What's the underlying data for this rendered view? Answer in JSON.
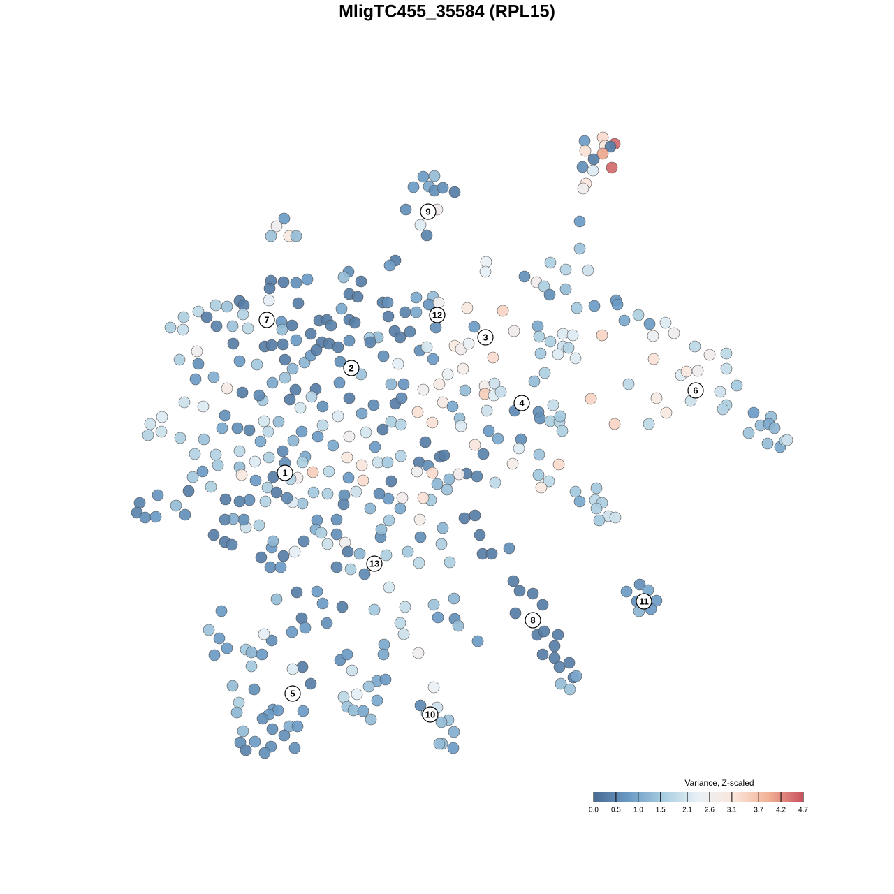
{
  "chart_data": {
    "type": "scatter",
    "title": "MligTC455_35584 (RPL15)",
    "colorbar_title": "Variance, Z-scaled",
    "xlim": [
      180,
      1150
    ],
    "ylim": [
      1100,
      180
    ],
    "colorscale": {
      "colors": [
        "#4a6b93",
        "#6a9ac4",
        "#a9cde0",
        "#e9f1f6",
        "#fbe6dc",
        "#f1b296",
        "#c8505e"
      ],
      "lim": [
        0,
        4.7
      ]
    },
    "colorbar_ticks": [
      {
        "value": 0,
        "label": "0.0"
      },
      0.5,
      {
        "value": 1,
        "label": "1.0"
      },
      1.5,
      2.1,
      2.6,
      3.1,
      3.7,
      4.2,
      4.7
    ],
    "cluster_labels": [
      {
        "label": "1",
        "x": 408,
        "y": 677
      },
      {
        "label": "2",
        "x": 503,
        "y": 527
      },
      {
        "label": "3",
        "x": 695,
        "y": 483
      },
      {
        "label": "4",
        "x": 747,
        "y": 577
      },
      {
        "label": "5",
        "x": 419,
        "y": 993
      },
      {
        "label": "6",
        "x": 996,
        "y": 559
      },
      {
        "label": "7",
        "x": 382,
        "y": 458
      },
      {
        "label": "8",
        "x": 763,
        "y": 888
      },
      {
        "label": "9",
        "x": 613,
        "y": 303
      },
      {
        "label": "10",
        "x": 616,
        "y": 1023
      },
      {
        "label": "11",
        "x": 922,
        "y": 861
      },
      {
        "label": "12",
        "x": 626,
        "y": 451
      },
      {
        "label": "13",
        "x": 536,
        "y": 807
      }
    ],
    "x": [
      837,
      863,
      880,
      866,
      874,
      838,
      850,
      863,
      834,
      849,
      876,
      839,
      835,
      830,
      830,
      606,
      622,
      614,
      592,
      622,
      634,
      651,
      581,
      626,
      602,
      611,
      407,
      396,
      388,
      414,
      424,
      566,
      558,
      499,
      492,
      517,
      500,
      512,
      440,
      424,
      406,
      388,
      386,
      385,
      343,
      349,
      325,
      309,
      284,
      263,
      244,
      262,
      296,
      310,
      333,
      355,
      348,
      427,
      403,
      418,
      404,
      457,
      468,
      474,
      500,
      508,
      489,
      548,
      555,
      596,
      620,
      614,
      580,
      596,
      556,
      624,
      565,
      573,
      541,
      529,
      334,
      379,
      389,
      405,
      424,
      445,
      461,
      471,
      484,
      500,
      530,
      549,
      570,
      587,
      601,
      611,
      620,
      628,
      669,
      679,
      696,
      695,
      720,
      736,
      751,
      768,
      779,
      788,
      810,
      810,
      787,
      826,
      851,
      842,
      882,
      884,
      894,
      914,
      930,
      953,
      965,
      935,
      862,
      806,
      820,
      770,
      772,
      788,
      806,
      814,
      799,
      824,
      774,
      780,
      765,
      651,
      660,
      671,
      706,
      663,
      641,
      629,
      666,
      694,
      694,
      707,
      708,
      717,
      697,
      737,
      771,
      792,
      773,
      788,
      801,
      802,
      805,
      658,
      660,
      606,
      634,
      648,
      598,
      619,
      566,
      575,
      578,
      560,
      900,
      940,
      954,
      929,
      880,
      846,
      936,
      975,
      983,
      999,
      1016,
      1040,
      1040,
      995,
      1031,
      1055,
      1040,
      1035,
      989,
      1079,
      1089,
      1104,
      1101,
      1109,
      1072,
      1099,
      1117,
      1124,
      1127,
      680,
      713,
      700,
      746,
      743,
      772,
      800,
      734,
      771,
      786,
      775,
      709,
      683,
      668,
      657,
      643,
      630,
      636,
      609,
      692,
      824,
      854,
      830,
      852,
      862,
      854,
      871,
      881,
      858,
      215,
      232,
      212,
      231,
      258,
      279,
      292,
      309,
      264,
      291,
      282,
      257,
      284,
      280,
      306,
      325,
      347,
      322,
      318,
      340,
      357,
      378,
      376,
      371,
      390,
      408,
      419,
      436,
      368,
      343,
      408,
      445,
      453,
      487,
      517,
      486,
      452,
      423,
      430,
      415,
      399,
      384,
      373,
      343,
      365,
      385,
      343,
      312,
      290,
      276,
      302,
      346,
      366,
      383,
      404,
      391,
      426,
      448,
      471,
      497,
      518,
      520,
      499,
      510,
      524,
      500,
      477,
      455,
      437,
      420,
      405,
      432,
      462,
      484,
      462,
      446,
      500,
      518,
      535,
      548,
      560,
      574,
      537,
      541,
      555,
      574,
      600,
      597,
      613,
      619,
      626,
      640,
      617,
      606,
      576,
      601,
      573,
      556,
      543,
      530,
      493,
      492,
      469,
      449,
      433,
      419,
      411,
      396,
      380,
      357,
      343,
      323,
      352,
      371,
      349,
      334,
      322,
      306,
      322,
      332,
      374,
      389,
      391,
      406,
      422,
      435,
      454,
      452,
      482,
      482,
      460,
      469,
      494,
      498,
      515,
      502,
      482,
      522,
      553,
      584,
      600,
      545,
      546,
      557,
      602,
      634,
      632,
      644,
      665,
      680,
      687,
      691,
      704,
      729,
      200,
      196,
      208,
      226,
      223,
      252,
      265,
      270,
      387,
      402,
      408,
      433,
      416,
      560,
      735,
      744,
      763,
      777,
      738,
      769,
      779,
      799,
      794,
      777,
      794,
      801,
      815,
      821,
      825,
      803,
      816,
      916,
      897,
      928,
      912,
      940,
      915,
      932,
      557,
      454,
      425,
      396,
      462,
      490,
      536,
      580,
      621,
      650,
      627,
      651,
      656,
      573,
      578,
      684,
      468,
      432,
      437,
      418,
      389,
      378,
      317,
      299,
      314,
      325,
      307,
      352,
      360,
      375,
      360,
      433,
      419,
      487,
      497,
      504,
      550,
      549,
      599,
      445,
      540,
      552,
      528,
      511,
      492,
      497,
      506,
      520,
      540,
      531,
      333,
      364,
      342,
      339,
      391,
      398,
      385,
      376,
      434,
      414,
      426,
      390,
      407,
      348,
      344,
      352,
      365,
      388,
      379,
      422,
      621,
      602,
      626,
      611,
      642,
      632,
      650,
      633,
      629,
      649
    ],
    "y": [
      202,
      197,
      206,
      209,
      210,
      216,
      228,
      220,
      239,
      244,
      240,
      263,
      270,
      317,
      356,
      253,
      252,
      267,
      268,
      273,
      269,
      275,
      300,
      300,
      322,
      337,
      313,
      324,
      338,
      338,
      338,
      373,
      380,
      389,
      397,
      403,
      421,
      425,
      400,
      405,
      404,
      402,
      413,
      430,
      431,
      437,
      439,
      437,
      446,
      454,
      469,
      472,
      454,
      467,
      467,
      470,
      450,
      434,
      461,
      466,
      472,
      459,
      458,
      466,
      458,
      462,
      442,
      433,
      433,
      426,
      425,
      436,
      447,
      447,
      453,
      469,
      474,
      483,
      483,
      484,
      492,
      496,
      494,
      493,
      487,
      478,
      490,
      492,
      497,
      488,
      490,
      510,
      521,
      475,
      502,
      497,
      514,
      433,
      441,
      468,
      375,
      389,
      445,
      474,
      396,
      404,
      410,
      376,
      386,
      414,
      422,
      441,
      438,
      387,
      430,
      436,
      459,
      451,
      464,
      462,
      477,
      481,
      480,
      478,
      480,
      467,
      482,
      489,
      496,
      498,
      507,
      513,
      506,
      534,
      546,
      495,
      500,
      492,
      512,
      528,
      536,
      550,
      559,
      553,
      564,
      566,
      549,
      561,
      588,
      588,
      590,
      580,
      599,
      603,
      604,
      596,
      617,
      599,
      610,
      558,
      576,
      582,
      590,
      605,
      578,
      570,
      550,
      550,
      550,
      570,
      591,
      607,
      607,
      571,
      514,
      537,
      532,
      531,
      508,
      506,
      528,
      496,
      561,
      552,
      580,
      586,
      574,
      591,
      609,
      597,
      607,
      613,
      620,
      635,
      640,
      631,
      630,
      637,
      628,
      617,
      629,
      642,
      651,
      665,
      664,
      680,
      689,
      698,
      691,
      682,
      678,
      679,
      686,
      654,
      652,
      633,
      650,
      704,
      699,
      718,
      716,
      720,
      728,
      739,
      741,
      745,
      607,
      597,
      623,
      618,
      627,
      650,
      629,
      651,
      576,
      582,
      503,
      515,
      521,
      543,
      540,
      556,
      562,
      595,
      613,
      613,
      616,
      603,
      573,
      566,
      548,
      541,
      528,
      519,
      522,
      517,
      515,
      509,
      501,
      518,
      536,
      548,
      557,
      558,
      584,
      572,
      604,
      618,
      632,
      646,
      661,
      655,
      669,
      666,
      675,
      683,
      697,
      680,
      688,
      698,
      677,
      683,
      684,
      676,
      675,
      655,
      666,
      688,
      684,
      704,
      619,
      625,
      638,
      625,
      654,
      631,
      646,
      618,
      609,
      596,
      582,
      568,
      570,
      592,
      580,
      615,
      604,
      608,
      640,
      662,
      662,
      653,
      662,
      675,
      667,
      677,
      693,
      701,
      716,
      713,
      713,
      744,
      728,
      714,
      707,
      728,
      709,
      722,
      707,
      705,
      721,
      719,
      713,
      705,
      718,
      716,
      718,
      715,
      755,
      752,
      744,
      743,
      744,
      766,
      776,
      780,
      798,
      784,
      775,
      796,
      790,
      775,
      745,
      758,
      744,
      765,
      763,
      779,
      777,
      790,
      793,
      815,
      812,
      822,
      795,
      790,
      806,
      769,
      758,
      745,
      769,
      756,
      779,
      805,
      742,
      738,
      766,
      793,
      793,
      785,
      720,
      734,
      741,
      709,
      740,
      724,
      737,
      703,
      812,
      812,
      663,
      662,
      686,
      689,
      832,
      846,
      850,
      866,
      878,
      909,
      904,
      909,
      925,
      937,
      942,
      955,
      949,
      970,
      968,
      979,
      987,
      837,
      847,
      845,
      861,
      860,
      875,
      872,
      841,
      847,
      848,
      858,
      864,
      869,
      873,
      869,
      866,
      857,
      884,
      886,
      896,
      892,
      908,
      918,
      892,
      885,
      899,
      905,
      917,
      908,
      875,
      902,
      914,
      928,
      938,
      930,
      934,
      937,
      954,
      955,
      958,
      945,
      937,
      960,
      923,
      937,
      935,
      979,
      975,
      973,
      983,
      994,
      998,
      1012,
      1017,
      1018,
      1003,
      1030,
      982,
      987,
      1006,
      1020,
      1016,
      1017,
      1023,
      1029,
      1018,
      1040,
      1040,
      1044,
      1053,
      1047,
      1063,
      1074,
      1062,
      1069,
      1078,
      1071,
      984,
      1010,
      1013,
      1021,
      1031,
      1034,
      1048,
      1065,
      1065,
      1071
    ],
    "values": [
      0.8,
      3.3,
      4.5,
      3.0,
      0.3,
      3.2,
      0.3,
      4.0,
      0.6,
      2.2,
      4.5,
      3.1,
      2.6,
      0.8,
      1.4,
      0.8,
      1.3,
      1.0,
      0.8,
      0.6,
      0.6,
      0.3,
      0.6,
      2.7,
      2.2,
      0.4,
      0.8,
      2.6,
      1.4,
      3.0,
      1.3,
      0.3,
      0.8,
      0.6,
      1.3,
      0.3,
      0.3,
      0.3,
      0.8,
      0.6,
      0.3,
      0.3,
      0.3,
      2.3,
      0.3,
      0.3,
      1.4,
      1.6,
      1.8,
      1.6,
      1.6,
      1.9,
      0.3,
      0.4,
      1.4,
      1.8,
      1.7,
      0.3,
      0.8,
      0.3,
      1.3,
      0.3,
      0.3,
      0.4,
      0.3,
      0.3,
      1.0,
      0.3,
      0.6,
      1.0,
      1.3,
      0.7,
      0.4,
      1.0,
      0.3,
      0.6,
      0.3,
      0.3,
      1.3,
      1.5,
      0.3,
      0.3,
      0.3,
      0.3,
      0.8,
      0.3,
      0.3,
      0.3,
      0.3,
      0.6,
      0.4,
      0.6,
      2.3,
      0.4,
      0.6,
      2.1,
      0.8,
      2.6,
      3.0,
      0.8,
      2.4,
      2.3,
      3.4,
      2.7,
      0.6,
      2.7,
      1.6,
      1.6,
      1.7,
      1.3,
      0.6,
      1.5,
      0.8,
      2.0,
      0.7,
      0.8,
      1.0,
      1.6,
      0.8,
      2.2,
      2.6,
      2.5,
      3.4,
      2.2,
      2.2,
      1.0,
      1.6,
      1.6,
      2.0,
      1.7,
      2.2,
      2.2,
      1.5,
      1.6,
      1.3,
      3.0,
      2.7,
      2.4,
      3.3,
      2.8,
      2.4,
      2.9,
      1.3,
      2.8,
      3.5,
      2.2,
      2.0,
      1.9,
      2.0,
      0.5,
      0.6,
      1.9,
      0.6,
      1.6,
      1.7,
      1.5,
      1.6,
      1.3,
      2.2,
      2.6,
      2.9,
      1.0,
      3.2,
      3.2,
      0.3,
      0.5,
      0.7,
      1.2,
      1.8,
      2.9,
      3.0,
      1.8,
      3.4,
      3.4,
      3.2,
      2.2,
      3.0,
      2.6,
      2.7,
      1.8,
      1.9,
      1.8,
      2.0,
      1.5,
      1.6,
      1.7,
      2.0,
      0.8,
      1.3,
      1.3,
      1.0,
      1.2,
      1.4,
      1.3,
      1.0,
      1.7,
      2.0,
      3.1,
      1.0,
      0.8,
      0.6,
      2.2,
      1.4,
      3.3,
      2.8,
      1.5,
      1.8,
      3.0,
      1.8,
      0.4,
      0.3,
      2.7,
      1.2,
      0.3,
      0.3,
      0.3,
      0.4,
      1.5,
      1.5,
      1.0,
      1.8,
      1.6,
      1.6,
      2.0,
      2.0,
      1.5,
      2.0,
      2.2,
      1.7,
      2.0,
      1.6,
      1.7,
      1.4,
      1.7,
      2.0,
      2.2,
      2.6,
      1.6,
      0.6,
      0.8,
      1.1,
      2.9,
      0.3,
      0.6,
      1.0,
      0.6,
      0.4,
      2.1,
      1.5,
      0.5,
      1.0,
      1.4,
      1.2,
      1.2,
      1.5,
      0.8,
      0.3,
      0.8,
      0.3,
      0.6,
      1.4,
      0.7,
      0.3,
      0.3,
      2.1,
      0.3,
      1.3,
      1.8,
      1.0,
      1.8,
      2.2,
      1.6,
      1.3,
      1.5,
      0.8,
      1.5,
      1.6,
      3.0,
      0.8,
      1.6,
      2.2,
      0.3,
      2.7,
      3.5,
      1.8,
      3.0,
      3.1,
      3.3,
      0.8,
      2.0,
      2.1,
      2.6,
      1.0,
      0.8,
      1.0,
      1.2,
      0.5,
      0.8,
      1.8,
      2.2,
      0.6,
      1.7,
      0.3,
      0.9,
      0.5,
      0.3,
      1.6,
      1.7,
      0.8,
      2.0,
      1.5,
      1.7,
      0.3,
      2.6,
      0.6,
      3.3,
      1.2,
      1.4,
      1.5,
      3.2,
      2.7,
      2.8,
      1.0,
      0.8,
      0.5,
      1.2,
      0.6,
      0.4,
      1.6,
      1.5,
      1.4,
      2.2,
      0.5,
      0.3,
      1.7,
      0.6,
      0.4,
      0.3,
      2.0,
      1.6,
      0.6,
      1.1,
      0.4,
      0.3,
      0.3,
      0.4,
      0.3,
      0.8,
      1.2,
      0.3,
      2.3,
      0.4,
      0.7,
      1.1,
      0.6,
      0.6,
      1.6,
      2.0,
      2.6,
      0.3,
      1.2,
      1.6,
      0.4,
      0.5,
      1.6,
      1.5,
      1.8,
      0.6,
      1.3,
      1.5,
      0.6,
      1.2,
      1.6,
      1.6,
      0.3,
      0.3,
      0.3,
      0.3,
      0.3,
      0.6,
      0.4,
      0.4,
      0.6,
      0.7,
      0.8,
      1.3,
      0.6,
      0.3,
      0.6,
      0.8,
      0.6,
      1.6,
      1.7,
      0.3,
      0.3,
      0.3,
      0.3,
      0.3,
      0.3,
      0.3,
      0.3,
      0.3,
      0.3,
      0.3,
      0.3,
      0.4,
      0.3,
      0.3,
      1.0,
      1.3,
      1.4,
      0.6,
      0.8,
      1.0,
      0.6,
      0.8,
      1.2,
      0.8,
      2.1,
      0.8,
      0.3,
      1.3,
      0.8,
      0.3,
      1.5,
      1.9,
      1.4,
      1.2,
      0.8,
      0.6,
      1.3,
      1.8,
      2.0,
      0.8,
      0.6,
      0.3,
      0.8,
      0.8,
      0.6,
      2.3,
      0.8,
      1.4,
      0.8,
      0.8,
      0.8,
      1.5,
      1.2,
      0.8,
      1.5,
      0.3,
      2.2,
      0.6,
      0.8,
      2.0,
      1.0,
      1.0,
      2.6,
      0.3,
      1.0,
      0.8,
      1.4,
      2.3,
      1.8,
      1.4,
      1.3,
      1.0,
      1.0,
      1.3,
      1.3,
      0.6,
      1.6,
      1.2,
      0.8,
      0.8,
      0.8,
      0.6,
      0.8,
      1.1,
      0.8,
      0.6,
      0.6,
      1.3,
      0.6,
      0.4,
      0.8,
      0.6,
      0.6,
      0.6,
      2.4,
      0.5,
      2.0,
      1.4,
      1.4,
      1.3,
      1.1,
      1.3,
      1.3,
      0.8
    ]
  }
}
